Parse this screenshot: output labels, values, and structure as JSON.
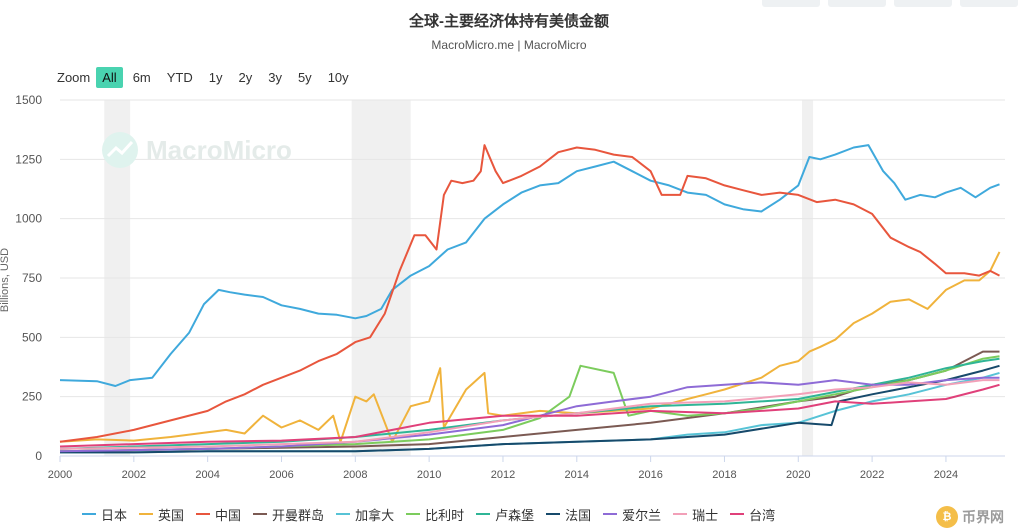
{
  "header": {
    "title": "全球-主要经济体持有美债金额",
    "subtitle": "MacroMicro.me | MacroMicro"
  },
  "zoom": {
    "label": "Zoom",
    "buttons": [
      "All",
      "6m",
      "YTD",
      "1y",
      "2y",
      "3y",
      "5y",
      "10y"
    ],
    "active": "All"
  },
  "watermark": "MacroMicro",
  "brand_badge": "币界网",
  "colors": {
    "accent": "#49d3b0",
    "recession_band": "#e6e6e6",
    "grid": "#e6e6e6"
  },
  "chart_data": {
    "type": "line",
    "title": "全球-主要经济体持有美债金额",
    "subtitle": "MacroMicro.me | MacroMicro",
    "xlabel": "",
    "ylabel": "Billions, USD",
    "xlim": [
      2000,
      2025.6
    ],
    "ylim": [
      0,
      1500
    ],
    "x_ticks": [
      "2000",
      "2002",
      "2004",
      "2006",
      "2008",
      "2010",
      "2012",
      "2014",
      "2016",
      "2018",
      "2020",
      "2022",
      "2024"
    ],
    "y_ticks": [
      "0",
      "250",
      "500",
      "750",
      "1000",
      "1250",
      "1500"
    ],
    "grid": true,
    "legend_position": "bottom",
    "shaded_periods": [
      [
        2001.2,
        2001.9
      ],
      [
        2007.9,
        2009.5
      ],
      [
        2020.1,
        2020.4
      ]
    ],
    "series": [
      {
        "name": "日本",
        "color": "#3fa9dc",
        "x": [
          2000.0,
          2001.0,
          2001.5,
          2001.9,
          2002.5,
          2003.0,
          2003.5,
          2003.9,
          2004.3,
          2004.6,
          2005.0,
          2005.5,
          2006.0,
          2006.5,
          2007.0,
          2007.5,
          2008.0,
          2008.3,
          2008.7,
          2009.0,
          2009.5,
          2010.0,
          2010.5,
          2011.0,
          2011.5,
          2012.0,
          2012.5,
          2013.0,
          2013.5,
          2014.0,
          2014.5,
          2015.0,
          2015.5,
          2016.0,
          2016.5,
          2017.0,
          2017.5,
          2018.0,
          2018.5,
          2019.0,
          2019.5,
          2020.0,
          2020.3,
          2020.6,
          2021.0,
          2021.5,
          2021.9,
          2022.3,
          2022.6,
          2022.9,
          2023.3,
          2023.7,
          2024.0,
          2024.4,
          2024.8,
          2025.2,
          2025.45
        ],
        "y": [
          320,
          315,
          295,
          320,
          330,
          430,
          520,
          640,
          700,
          690,
          680,
          670,
          635,
          620,
          600,
          595,
          580,
          590,
          620,
          700,
          760,
          800,
          870,
          900,
          1000,
          1060,
          1110,
          1140,
          1150,
          1200,
          1220,
          1240,
          1200,
          1160,
          1140,
          1110,
          1100,
          1060,
          1040,
          1030,
          1080,
          1140,
          1260,
          1250,
          1270,
          1300,
          1310,
          1200,
          1150,
          1080,
          1100,
          1090,
          1110,
          1130,
          1090,
          1130,
          1145
        ]
      },
      {
        "name": "英国",
        "color": "#f0b33c",
        "x": [
          2000.0,
          2001.0,
          2002.0,
          2003.0,
          2004.0,
          2004.5,
          2005.0,
          2005.5,
          2006.0,
          2006.5,
          2007.0,
          2007.4,
          2007.6,
          2008.0,
          2008.3,
          2008.5,
          2009.0,
          2009.5,
          2010.0,
          2010.3,
          2010.4,
          2011.0,
          2011.5,
          2011.6,
          2012.0,
          2013.0,
          2014.0,
          2015.0,
          2016.0,
          2016.5,
          2017.0,
          2017.5,
          2018.0,
          2019.0,
          2019.5,
          2020.0,
          2020.3,
          2020.6,
          2021.0,
          2021.5,
          2022.0,
          2022.5,
          2023.0,
          2023.5,
          2024.0,
          2024.5,
          2024.9,
          2025.2,
          2025.45
        ],
        "y": [
          60,
          70,
          65,
          80,
          100,
          110,
          95,
          170,
          120,
          150,
          110,
          170,
          60,
          250,
          230,
          260,
          60,
          210,
          230,
          370,
          120,
          280,
          350,
          180,
          170,
          190,
          180,
          190,
          200,
          220,
          240,
          260,
          280,
          330,
          380,
          400,
          440,
          460,
          490,
          560,
          600,
          650,
          660,
          620,
          700,
          740,
          740,
          780,
          860
        ]
      },
      {
        "name": "中国",
        "color": "#e8563d",
        "x": [
          2000.0,
          2001.0,
          2002.0,
          2003.0,
          2004.0,
          2004.5,
          2005.0,
          2005.5,
          2006.0,
          2006.5,
          2007.0,
          2007.5,
          2008.0,
          2008.4,
          2008.8,
          2009.2,
          2009.6,
          2009.9,
          2010.2,
          2010.4,
          2010.6,
          2010.9,
          2011.2,
          2011.4,
          2011.5,
          2011.8,
          2012.0,
          2012.5,
          2013.0,
          2013.5,
          2014.0,
          2014.5,
          2015.0,
          2015.5,
          2016.0,
          2016.3,
          2016.8,
          2017.0,
          2017.5,
          2018.0,
          2018.5,
          2019.0,
          2019.5,
          2020.0,
          2020.5,
          2021.0,
          2021.5,
          2022.0,
          2022.5,
          2023.0,
          2023.3,
          2023.7,
          2024.0,
          2024.5,
          2024.9,
          2025.2,
          2025.45
        ],
        "y": [
          60,
          80,
          110,
          150,
          190,
          230,
          260,
          300,
          330,
          360,
          400,
          430,
          480,
          500,
          600,
          780,
          930,
          930,
          870,
          1100,
          1160,
          1150,
          1160,
          1200,
          1310,
          1200,
          1150,
          1180,
          1220,
          1280,
          1300,
          1290,
          1270,
          1260,
          1200,
          1100,
          1100,
          1180,
          1170,
          1140,
          1120,
          1100,
          1110,
          1100,
          1070,
          1080,
          1060,
          1020,
          920,
          880,
          860,
          810,
          770,
          770,
          760,
          780,
          760
        ]
      },
      {
        "name": "开曼群岛",
        "color": "#7b5a53",
        "x": [
          2000,
          2002,
          2004,
          2006,
          2008,
          2010,
          2012,
          2014,
          2016,
          2018,
          2020,
          2021,
          2022,
          2023,
          2024,
          2024.5,
          2025,
          2025.45
        ],
        "y": [
          20,
          25,
          30,
          35,
          40,
          50,
          80,
          110,
          140,
          180,
          230,
          250,
          300,
          320,
          360,
          400,
          440,
          440
        ]
      },
      {
        "name": "加拿大",
        "color": "#57c3d6",
        "x": [
          2000,
          2002,
          2004,
          2006,
          2008,
          2010,
          2012,
          2014,
          2016,
          2017,
          2018,
          2019,
          2020,
          2021,
          2022,
          2023,
          2024,
          2025,
          2025.45
        ],
        "y": [
          15,
          15,
          20,
          20,
          20,
          30,
          50,
          60,
          70,
          90,
          100,
          130,
          140,
          190,
          230,
          260,
          300,
          330,
          350
        ]
      },
      {
        "name": "比利时",
        "color": "#7ccc5d",
        "x": [
          2000,
          2002,
          2004,
          2006,
          2008,
          2010,
          2012,
          2013,
          2013.8,
          2014.1,
          2015.0,
          2015.4,
          2016,
          2017,
          2018,
          2019,
          2020,
          2021,
          2022,
          2023,
          2024,
          2025,
          2025.45
        ],
        "y": [
          20,
          25,
          30,
          40,
          50,
          70,
          110,
          160,
          250,
          380,
          350,
          170,
          190,
          170,
          180,
          200,
          230,
          260,
          290,
          320,
          360,
          410,
          420
        ]
      },
      {
        "name": "卢森堡",
        "color": "#2fb596",
        "x": [
          2000,
          2002,
          2004,
          2006,
          2008,
          2010,
          2012,
          2014,
          2016,
          2018,
          2020,
          2021,
          2022,
          2023,
          2024,
          2025,
          2025.45
        ],
        "y": [
          30,
          40,
          50,
          60,
          80,
          110,
          150,
          180,
          210,
          220,
          240,
          270,
          300,
          330,
          370,
          400,
          410
        ]
      },
      {
        "name": "法国",
        "color": "#174a6b",
        "x": [
          2000,
          2002,
          2004,
          2006,
          2008,
          2010,
          2012,
          2014,
          2016,
          2018,
          2020,
          2020.9,
          2021.1,
          2022,
          2023,
          2024,
          2025,
          2025.45
        ],
        "y": [
          15,
          15,
          20,
          20,
          20,
          30,
          50,
          60,
          70,
          90,
          140,
          130,
          230,
          260,
          290,
          320,
          360,
          380
        ]
      },
      {
        "name": "爱尔兰",
        "color": "#8e6bd6",
        "x": [
          2000,
          2002,
          2004,
          2006,
          2008,
          2010,
          2012,
          2013,
          2014,
          2015,
          2016,
          2017,
          2018,
          2019,
          2020,
          2021,
          2022,
          2023,
          2024,
          2025,
          2025.45
        ],
        "y": [
          20,
          25,
          30,
          40,
          60,
          90,
          130,
          170,
          210,
          230,
          250,
          290,
          300,
          310,
          300,
          320,
          300,
          300,
          320,
          330,
          330
        ]
      },
      {
        "name": "瑞士",
        "color": "#f2a0b8",
        "x": [
          2000,
          2002,
          2004,
          2006,
          2008,
          2010,
          2012,
          2014,
          2016,
          2018,
          2020,
          2021,
          2022,
          2023,
          2024,
          2025,
          2025.45
        ],
        "y": [
          30,
          35,
          40,
          50,
          60,
          100,
          150,
          180,
          220,
          230,
          260,
          280,
          290,
          310,
          300,
          320,
          320
        ]
      },
      {
        "name": "台湾",
        "color": "#e0407a",
        "x": [
          2000,
          2002,
          2004,
          2006,
          2008,
          2010,
          2012,
          2014,
          2016,
          2018,
          2020,
          2021,
          2022,
          2023,
          2024,
          2025,
          2025.45
        ],
        "y": [
          40,
          50,
          60,
          65,
          80,
          140,
          170,
          170,
          190,
          180,
          200,
          230,
          220,
          230,
          240,
          280,
          300
        ]
      }
    ]
  }
}
